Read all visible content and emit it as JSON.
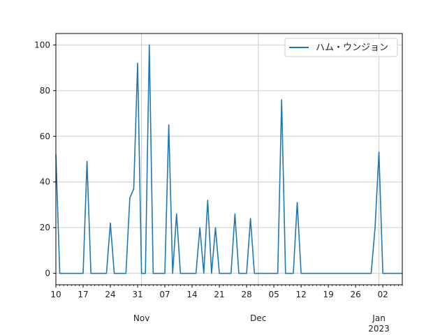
{
  "chart_data": {
    "type": "line",
    "legend_position": "top-right",
    "grid": true,
    "series": [
      {
        "name": "ハム・ウンジョン",
        "color": "#1f77b4",
        "x": [
          "2022-10-10",
          "2022-10-11",
          "2022-10-17",
          "2022-10-18",
          "2022-10-19",
          "2022-10-23",
          "2022-10-24",
          "2022-10-25",
          "2022-10-28",
          "2022-10-29",
          "2022-10-30",
          "2022-10-31",
          "2022-11-01",
          "2022-11-02",
          "2022-11-03",
          "2022-11-04",
          "2022-11-07",
          "2022-11-08",
          "2022-11-09",
          "2022-11-10",
          "2022-11-11",
          "2022-11-15",
          "2022-11-16",
          "2022-11-17",
          "2022-11-18",
          "2022-11-19",
          "2022-11-20",
          "2022-11-21",
          "2022-11-24",
          "2022-11-25",
          "2022-11-26",
          "2022-11-28",
          "2022-11-29",
          "2022-11-30",
          "2022-12-06",
          "2022-12-07",
          "2022-12-08",
          "2022-12-10",
          "2022-12-11",
          "2022-12-12",
          "2022-12-13",
          "2022-12-30",
          "2022-12-31",
          "2023-01-01",
          "2023-01-02",
          "2023-01-03",
          "2023-01-07"
        ],
        "values": [
          52,
          0,
          0,
          49,
          0,
          0,
          22,
          0,
          0,
          33,
          37,
          92,
          0,
          0,
          100,
          0,
          0,
          65,
          0,
          26,
          0,
          0,
          20,
          0,
          32,
          0,
          20,
          0,
          0,
          26,
          0,
          0,
          24,
          0,
          0,
          76,
          0,
          0,
          31,
          0,
          0,
          0,
          20,
          53,
          0,
          0,
          0
        ]
      }
    ],
    "xlim": [
      "2022-10-10",
      "2023-01-07"
    ],
    "ylim": [
      -5,
      105
    ],
    "y_ticks": [
      0,
      20,
      40,
      60,
      80,
      100
    ],
    "x_ticks": [
      {
        "date": "2022-10-10",
        "label": "10"
      },
      {
        "date": "2022-10-17",
        "label": "17"
      },
      {
        "date": "2022-10-24",
        "label": "24"
      },
      {
        "date": "2022-10-31",
        "label": "31"
      },
      {
        "date": "2022-11-07",
        "label": "07"
      },
      {
        "date": "2022-11-14",
        "label": "14"
      },
      {
        "date": "2022-11-21",
        "label": "21"
      },
      {
        "date": "2022-11-28",
        "label": "28"
      },
      {
        "date": "2022-12-05",
        "label": "05"
      },
      {
        "date": "2022-12-12",
        "label": "12"
      },
      {
        "date": "2022-12-19",
        "label": "19"
      },
      {
        "date": "2022-12-26",
        "label": "26"
      },
      {
        "date": "2023-01-02",
        "label": "02"
      }
    ],
    "x_major": [
      {
        "date": "2022-11-01",
        "label": "Nov"
      },
      {
        "date": "2022-12-01",
        "label": "Dec"
      },
      {
        "date": "2023-01-01",
        "label": "Jan",
        "sublabel": "2023"
      }
    ]
  }
}
